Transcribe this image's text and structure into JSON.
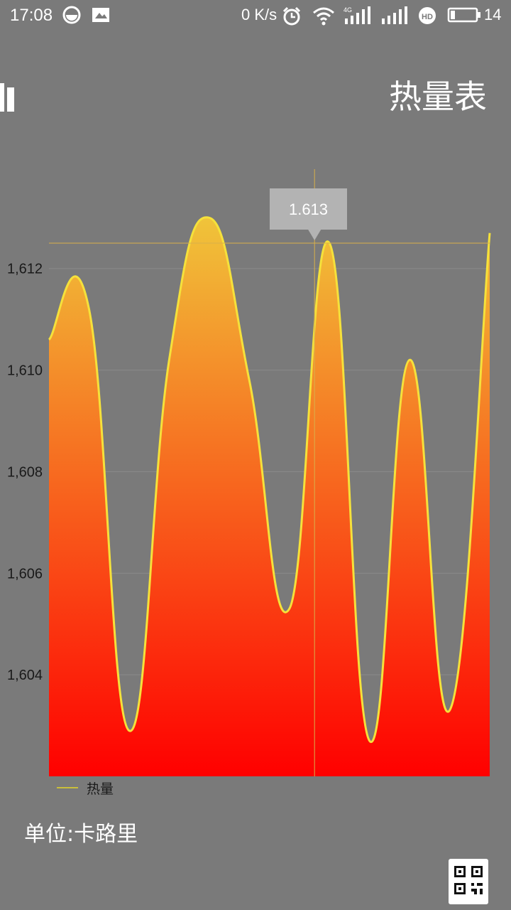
{
  "status_bar": {
    "time": "17:08",
    "network_speed": "0 K/s",
    "battery_level": "14",
    "icons": [
      "circle-app-icon",
      "image-icon",
      "alarm-icon",
      "wifi-icon",
      "signal-4g-icon",
      "signal-icon",
      "hd-icon",
      "battery-icon"
    ]
  },
  "header": {
    "title": "热量表",
    "menu_icon": "bar-chart-icon"
  },
  "chart_data": {
    "type": "area",
    "x": [
      0,
      1,
      2,
      3,
      4,
      5,
      6,
      7,
      8,
      9,
      10,
      11
    ],
    "series": [
      {
        "name": "热量",
        "values": [
          1610.6,
          1611.2,
          1602.9,
          1610.2,
          1613.0,
          1609.8,
          1605.3,
          1612.5,
          1602.7,
          1610.2,
          1603.3,
          1612.7
        ]
      }
    ],
    "ylim": [
      1602,
      1612.5
    ],
    "yticks": [
      "1,604",
      "1,606",
      "1,608",
      "1,610",
      "1,612"
    ],
    "grid": true,
    "legend": "bottom-left",
    "colors": {
      "line": "#f5e13b",
      "fill_top": "#f0c43a",
      "fill_bottom": "#ff0000",
      "grid": "#8a8a8a",
      "highlight": "#d9b04a"
    },
    "highlight": {
      "x": 7,
      "label": "1.613"
    }
  },
  "legend": {
    "label": "热量"
  },
  "footer": {
    "unit_label": "单位:卡路里",
    "qr_icon": "qr-code-icon"
  }
}
